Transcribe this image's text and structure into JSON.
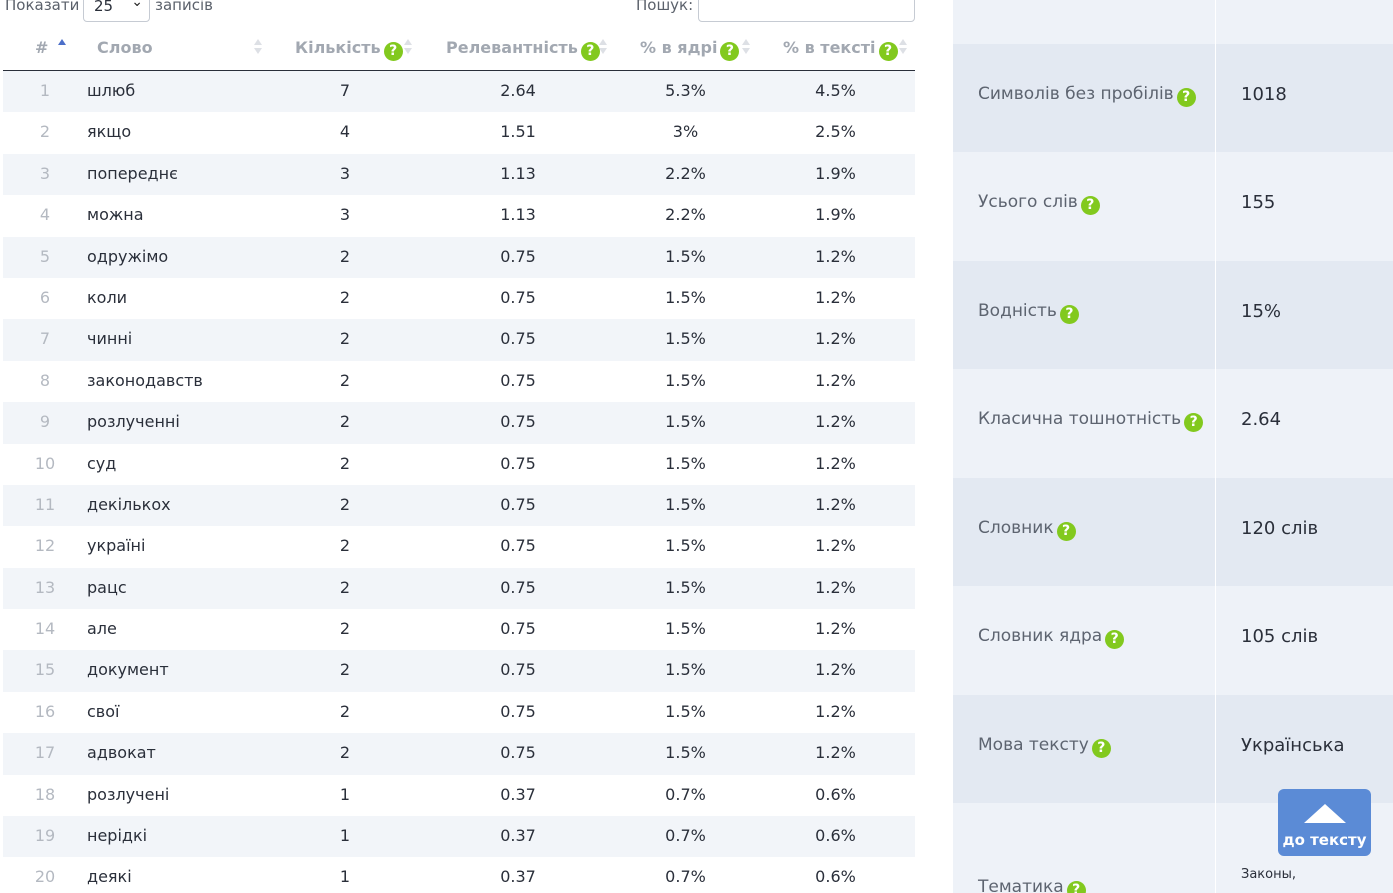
{
  "controls": {
    "show_label": "Показати",
    "page_size": "25",
    "entries_label": "записів",
    "search_label": "Пошук:",
    "search_value": ""
  },
  "table": {
    "headers": {
      "index": "#",
      "word": "Слово",
      "count": "Кількість",
      "relevance": "Релевантність",
      "core_pct": "% в ядрі",
      "text_pct": "% в тексті"
    },
    "rows": [
      {
        "i": "1",
        "word": "шлюб",
        "count": "7",
        "rel": "2.64",
        "core": "5.3%",
        "text": "4.5%"
      },
      {
        "i": "2",
        "word": "якщо",
        "count": "4",
        "rel": "1.51",
        "core": "3%",
        "text": "2.5%"
      },
      {
        "i": "3",
        "word": "попереднє",
        "count": "3",
        "rel": "1.13",
        "core": "2.2%",
        "text": "1.9%"
      },
      {
        "i": "4",
        "word": "можна",
        "count": "3",
        "rel": "1.13",
        "core": "2.2%",
        "text": "1.9%"
      },
      {
        "i": "5",
        "word": "одружімо",
        "count": "2",
        "rel": "0.75",
        "core": "1.5%",
        "text": "1.2%"
      },
      {
        "i": "6",
        "word": "коли",
        "count": "2",
        "rel": "0.75",
        "core": "1.5%",
        "text": "1.2%"
      },
      {
        "i": "7",
        "word": "чинні",
        "count": "2",
        "rel": "0.75",
        "core": "1.5%",
        "text": "1.2%"
      },
      {
        "i": "8",
        "word": "законодавств",
        "count": "2",
        "rel": "0.75",
        "core": "1.5%",
        "text": "1.2%"
      },
      {
        "i": "9",
        "word": "розлученні",
        "count": "2",
        "rel": "0.75",
        "core": "1.5%",
        "text": "1.2%"
      },
      {
        "i": "10",
        "word": "суд",
        "count": "2",
        "rel": "0.75",
        "core": "1.5%",
        "text": "1.2%"
      },
      {
        "i": "11",
        "word": "декількох",
        "count": "2",
        "rel": "0.75",
        "core": "1.5%",
        "text": "1.2%"
      },
      {
        "i": "12",
        "word": "україні",
        "count": "2",
        "rel": "0.75",
        "core": "1.5%",
        "text": "1.2%"
      },
      {
        "i": "13",
        "word": "рацс",
        "count": "2",
        "rel": "0.75",
        "core": "1.5%",
        "text": "1.2%"
      },
      {
        "i": "14",
        "word": "але",
        "count": "2",
        "rel": "0.75",
        "core": "1.5%",
        "text": "1.2%"
      },
      {
        "i": "15",
        "word": "документ",
        "count": "2",
        "rel": "0.75",
        "core": "1.5%",
        "text": "1.2%"
      },
      {
        "i": "16",
        "word": "свої",
        "count": "2",
        "rel": "0.75",
        "core": "1.5%",
        "text": "1.2%"
      },
      {
        "i": "17",
        "word": "адвокат",
        "count": "2",
        "rel": "0.75",
        "core": "1.5%",
        "text": "1.2%"
      },
      {
        "i": "18",
        "word": "розлучені",
        "count": "1",
        "rel": "0.37",
        "core": "0.7%",
        "text": "0.6%"
      },
      {
        "i": "19",
        "word": "нерідкі",
        "count": "1",
        "rel": "0.37",
        "core": "0.7%",
        "text": "0.6%"
      },
      {
        "i": "20",
        "word": "деякі",
        "count": "1",
        "rel": "0.37",
        "core": "0.7%",
        "text": "0.6%"
      }
    ]
  },
  "stats": [
    {
      "label": "Символів без пробілів",
      "value": "1018"
    },
    {
      "label": "Усього слів",
      "value": "155"
    },
    {
      "label": "Водність",
      "value": "15%"
    },
    {
      "label": "Класична тошнотність",
      "value": "2.64"
    },
    {
      "label": "Словник",
      "value": "120 слів"
    },
    {
      "label": "Словник ядра",
      "value": "105 слів"
    },
    {
      "label": "Мова тексту",
      "value": "Українська"
    },
    {
      "label": "Тематика",
      "value": "Законы,"
    }
  ],
  "help_glyph": "?",
  "to_text_button": "до тексту",
  "colors": {
    "accent": "#4c6fc9",
    "help_green": "#82c91e",
    "button_blue": "#5b8bd6",
    "stats_bg": "#eef2f8",
    "stats_bg_dark": "#e3e9f2",
    "row_stripe": "#f2f5f9"
  }
}
